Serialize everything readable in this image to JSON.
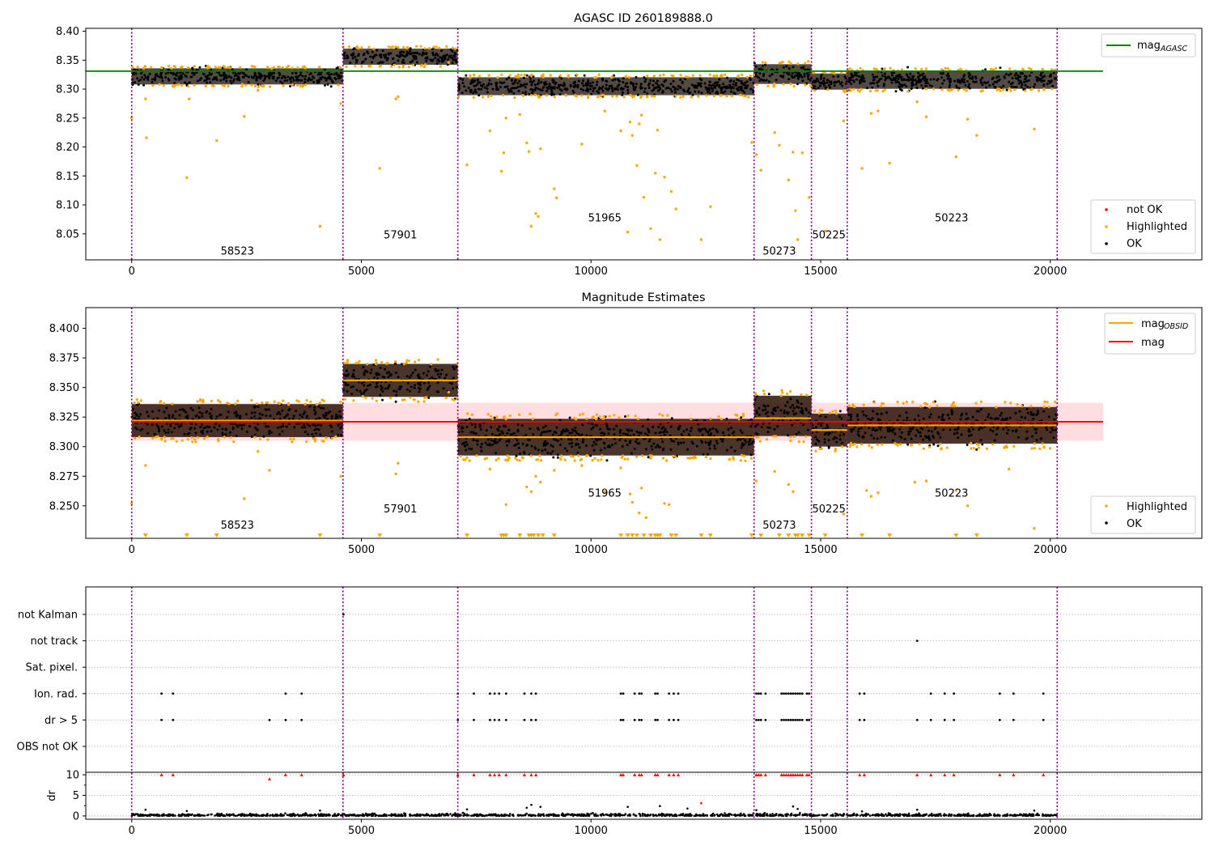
{
  "chart_data": [
    {
      "type": "scatter",
      "title": "AGASC ID 260189888.0",
      "xlabel": "",
      "ylabel": "",
      "xlim": [
        -1000,
        23300
      ],
      "ylim": [
        8.005,
        8.405
      ],
      "xticks": [
        0,
        5000,
        10000,
        15000,
        20000
      ],
      "xtick_labels": [
        "0",
        "5000",
        "10000",
        "15000",
        "20000"
      ],
      "yticks": [
        8.05,
        8.1,
        8.15,
        8.2,
        8.25,
        8.3,
        8.35,
        8.4
      ],
      "ytick_labels": [
        "8.05",
        "8.10",
        "8.15",
        "8.20",
        "8.25",
        "8.30",
        "8.35",
        "8.40"
      ],
      "boundaries": [
        0,
        4600,
        7100,
        13550,
        14800,
        15580,
        20150
      ],
      "reference_lines": [
        {
          "name": "mag$_{AGASC}$",
          "label_main": "mag",
          "label_sub": "AGASC",
          "y": 8.331,
          "x": [
            0,
            21150
          ],
          "color": "#008000"
        }
      ],
      "obsids": [
        {
          "label": "58523",
          "x": 2300,
          "y": 8.02
        },
        {
          "label": "57901",
          "x": 5850,
          "y": 8.048
        },
        {
          "label": "51965",
          "x": 10300,
          "y": 8.077
        },
        {
          "label": "50273",
          "x": 14100,
          "y": 8.02
        },
        {
          "label": "50225",
          "x": 15180,
          "y": 8.048
        },
        {
          "label": "50223",
          "x": 17850,
          "y": 8.077
        }
      ],
      "segments": [
        {
          "x": [
            0,
            4600
          ],
          "center": 8.322,
          "spread": 0.009
        },
        {
          "x": [
            4600,
            7100
          ],
          "center": 8.356,
          "spread": 0.009
        },
        {
          "x": [
            7100,
            13550
          ],
          "center": 8.305,
          "spread": 0.01
        },
        {
          "x": [
            13550,
            14800
          ],
          "center": 8.326,
          "spread": 0.011
        },
        {
          "x": [
            14800,
            15580
          ],
          "center": 8.313,
          "spread": 0.009
        },
        {
          "x": [
            15580,
            20150
          ],
          "center": 8.316,
          "spread": 0.01
        }
      ],
      "highlighted_points": [
        [
          0,
          8.25
        ],
        [
          300,
          8.283
        ],
        [
          320,
          8.216
        ],
        [
          1200,
          8.147
        ],
        [
          1250,
          8.283
        ],
        [
          1850,
          8.211
        ],
        [
          2450,
          8.253
        ],
        [
          2750,
          8.298
        ],
        [
          4100,
          8.063
        ],
        [
          4550,
          8.275
        ],
        [
          5400,
          8.163
        ],
        [
          5750,
          8.283
        ],
        [
          5800,
          8.287
        ],
        [
          6900,
          8.346
        ],
        [
          7300,
          8.169
        ],
        [
          7800,
          8.228
        ],
        [
          8050,
          8.158
        ],
        [
          8100,
          8.19
        ],
        [
          8150,
          8.25
        ],
        [
          8450,
          8.256
        ],
        [
          8600,
          8.207
        ],
        [
          8650,
          8.192
        ],
        [
          8700,
          8.063
        ],
        [
          8800,
          8.085
        ],
        [
          8850,
          8.08
        ],
        [
          8900,
          8.197
        ],
        [
          9200,
          8.128
        ],
        [
          9250,
          8.112
        ],
        [
          9800,
          8.205
        ],
        [
          10300,
          8.262
        ],
        [
          10650,
          8.228
        ],
        [
          10800,
          8.053
        ],
        [
          10850,
          8.243
        ],
        [
          10900,
          8.22
        ],
        [
          11000,
          8.168
        ],
        [
          11050,
          8.24
        ],
        [
          11100,
          8.255
        ],
        [
          11150,
          8.113
        ],
        [
          11300,
          8.059
        ],
        [
          11400,
          8.155
        ],
        [
          11450,
          8.229
        ],
        [
          11500,
          8.04
        ],
        [
          11600,
          8.148
        ],
        [
          11750,
          8.123
        ],
        [
          11850,
          8.093
        ],
        [
          12400,
          8.04
        ],
        [
          12600,
          8.097
        ],
        [
          13500,
          8.208
        ],
        [
          13600,
          8.187
        ],
        [
          13700,
          8.16
        ],
        [
          14000,
          8.225
        ],
        [
          14100,
          8.203
        ],
        [
          14300,
          8.143
        ],
        [
          14400,
          8.191
        ],
        [
          14450,
          8.09
        ],
        [
          14500,
          8.04
        ],
        [
          14600,
          8.19
        ],
        [
          14750,
          8.113
        ],
        [
          15100,
          8.055
        ],
        [
          15500,
          8.245
        ],
        [
          15900,
          8.163
        ],
        [
          16100,
          8.258
        ],
        [
          16250,
          8.262
        ],
        [
          16500,
          8.172
        ],
        [
          17100,
          8.278
        ],
        [
          17300,
          8.252
        ],
        [
          17950,
          8.183
        ],
        [
          18200,
          8.248
        ],
        [
          18400,
          8.22
        ],
        [
          19650,
          8.231
        ]
      ],
      "legend": [
        {
          "label": "not OK",
          "color": "#ff0000"
        },
        {
          "label": "Highlighted",
          "color": "#ffa500"
        },
        {
          "label": "OK",
          "color": "#000000"
        }
      ]
    },
    {
      "type": "scatter",
      "title": "Magnitude Estimates",
      "xlabel": "",
      "ylabel": "",
      "xlim": [
        -1000,
        23300
      ],
      "ylim": [
        8.2225,
        8.4175
      ],
      "xticks": [
        0,
        5000,
        10000,
        15000,
        20000
      ],
      "xtick_labels": [
        "0",
        "5000",
        "10000",
        "15000",
        "20000"
      ],
      "yticks": [
        8.25,
        8.275,
        8.3,
        8.325,
        8.35,
        8.375,
        8.4
      ],
      "ytick_labels": [
        "8.250",
        "8.275",
        "8.300",
        "8.325",
        "8.350",
        "8.375",
        "8.400"
      ],
      "boundaries": [
        0,
        4600,
        7100,
        13550,
        14800,
        15580,
        20150
      ],
      "mag": {
        "label": "mag",
        "value": 8.321,
        "band": [
          8.305,
          8.337
        ],
        "x": [
          0,
          21150
        ],
        "color": "#ff0000",
        "band_color": "#ffdde0"
      },
      "mag_obsid": {
        "label_main": "mag",
        "label_sub": "OBSID",
        "color": "#ffa500",
        "values": [
          8.322,
          8.356,
          8.308,
          8.324,
          8.314,
          8.318
        ]
      },
      "obsids": [
        {
          "label": "58523",
          "x": 2300,
          "y": 8.2335
        },
        {
          "label": "57901",
          "x": 5850,
          "y": 8.247
        },
        {
          "label": "51965",
          "x": 10300,
          "y": 8.2605
        },
        {
          "label": "50273",
          "x": 14100,
          "y": 8.2335
        },
        {
          "label": "50225",
          "x": 15180,
          "y": 8.247
        },
        {
          "label": "50223",
          "x": 17850,
          "y": 8.2605
        }
      ],
      "segments": [
        {
          "x": [
            0,
            4600
          ],
          "center": 8.322,
          "spread": 0.009
        },
        {
          "x": [
            4600,
            7100
          ],
          "center": 8.356,
          "spread": 0.009
        },
        {
          "x": [
            7100,
            13550
          ],
          "center": 8.308,
          "spread": 0.01
        },
        {
          "x": [
            13550,
            14800
          ],
          "center": 8.326,
          "spread": 0.011
        },
        {
          "x": [
            14800,
            15580
          ],
          "center": 8.314,
          "spread": 0.009
        },
        {
          "x": [
            15580,
            20150
          ],
          "center": 8.318,
          "spread": 0.01
        }
      ],
      "highlighted_points": [
        [
          0,
          8.252
        ],
        [
          300,
          8.284
        ],
        [
          2450,
          8.256
        ],
        [
          2750,
          8.296
        ],
        [
          3000,
          8.28
        ],
        [
          4550,
          8.275
        ],
        [
          5750,
          8.277
        ],
        [
          5800,
          8.286
        ],
        [
          6900,
          8.346
        ],
        [
          7800,
          8.281
        ],
        [
          8150,
          8.251
        ],
        [
          8600,
          8.266
        ],
        [
          8700,
          8.262
        ],
        [
          8800,
          8.275
        ],
        [
          8900,
          8.27
        ],
        [
          9200,
          8.28
        ],
        [
          9800,
          8.284
        ],
        [
          10300,
          8.262
        ],
        [
          10650,
          8.282
        ],
        [
          10850,
          8.26
        ],
        [
          10900,
          8.253
        ],
        [
          11050,
          8.244
        ],
        [
          11100,
          8.265
        ],
        [
          11200,
          8.24
        ],
        [
          11600,
          8.252
        ],
        [
          11700,
          8.251
        ],
        [
          13600,
          8.271
        ],
        [
          14000,
          8.279
        ],
        [
          14300,
          8.268
        ],
        [
          14400,
          8.262
        ],
        [
          15500,
          8.243
        ],
        [
          16000,
          8.263
        ],
        [
          16100,
          8.258
        ],
        [
          16250,
          8.261
        ],
        [
          17050,
          8.27
        ],
        [
          17300,
          8.271
        ],
        [
          17950,
          8.263
        ],
        [
          18200,
          8.25
        ],
        [
          19100,
          8.281
        ],
        [
          19650,
          8.231
        ]
      ],
      "clipped_below": [
        300,
        1200,
        1850,
        4100,
        5400,
        7300,
        8050,
        8100,
        8150,
        8450,
        8650,
        8700,
        8750,
        8850,
        8950,
        9200,
        10650,
        10800,
        10900,
        11000,
        11150,
        11300,
        11400,
        11450,
        11500,
        11750,
        11850,
        12400,
        12600,
        13500,
        13700,
        14100,
        14300,
        14450,
        14500,
        14600,
        14750,
        15100,
        15900,
        16500,
        17950,
        18400
      ],
      "legend": [
        {
          "label": "Highlighted",
          "color": "#ffa500"
        },
        {
          "label": "OK",
          "color": "#000000"
        }
      ]
    },
    {
      "type": "scatter",
      "title": "",
      "xlabel": "",
      "ylabel": "",
      "xlim": [
        -1000,
        23300
      ],
      "flag_rows": [
        "not Kalman",
        "not track",
        "Sat. pixel.",
        "Ion. rad.",
        "dr > 5",
        "OBS not OK"
      ],
      "boundaries": [
        0,
        4600,
        7100,
        13550,
        14800,
        15580,
        20150
      ],
      "flags": {
        "not Kalman": [
          4610
        ],
        "not track": [
          17100
        ],
        "Sat. pixel.": [],
        "Ion. rad.": [
          650,
          900,
          3350,
          3700,
          7100,
          7450,
          7800,
          7900,
          8000,
          8150,
          8550,
          8700,
          8800,
          10650,
          10700,
          10950,
          11050,
          11100,
          11400,
          11450,
          11700,
          11800,
          11900,
          13600,
          13650,
          13700,
          13800,
          14150,
          14200,
          14250,
          14300,
          14350,
          14400,
          14450,
          14500,
          14550,
          14600,
          14700,
          14750,
          15850,
          15950,
          17400,
          17700,
          17900,
          18900,
          19200,
          19850
        ],
        "dr > 5": [
          650,
          900,
          3000,
          3350,
          3700,
          7100,
          7450,
          7800,
          7900,
          8000,
          8150,
          8550,
          8700,
          8800,
          10650,
          10700,
          10950,
          11050,
          11100,
          11400,
          11450,
          11700,
          11800,
          11900,
          13600,
          13650,
          13700,
          13800,
          14150,
          14200,
          14250,
          14300,
          14350,
          14400,
          14450,
          14500,
          14550,
          14600,
          14700,
          14750,
          15850,
          15950,
          17100,
          17400,
          17700,
          17900,
          18900,
          19200,
          19850
        ],
        "OBS not OK": []
      },
      "dr": {
        "ylabel": "dr",
        "ylim": [
          -0.8,
          10.6
        ],
        "yticks": [
          0,
          5,
          10
        ],
        "ytick_labels": [
          "0",
          "5",
          "10"
        ],
        "red_markers": [
          650,
          900,
          3000,
          3350,
          3700,
          4610,
          7100,
          7450,
          7800,
          7900,
          8000,
          8150,
          8550,
          8700,
          8800,
          10650,
          10700,
          10950,
          11050,
          11100,
          11400,
          11450,
          11700,
          11800,
          11900,
          13600,
          13650,
          13700,
          13800,
          14150,
          14200,
          14250,
          14300,
          14350,
          14400,
          14450,
          14500,
          14550,
          14600,
          14700,
          14750,
          15850,
          15950,
          17100,
          17400,
          17700,
          17900,
          18900,
          19200,
          19850
        ],
        "red_marker_y": [
          10,
          10,
          9,
          10,
          10,
          10,
          10,
          10,
          10,
          10,
          10,
          10,
          10,
          10,
          10,
          10,
          10,
          10,
          10,
          10,
          10,
          10,
          10,
          10,
          10,
          10,
          10,
          10,
          10,
          10,
          10,
          10,
          10,
          10,
          10,
          10,
          10,
          10,
          10,
          10,
          10,
          10,
          10,
          10,
          10,
          10,
          10,
          10,
          10,
          10
        ],
        "spikes": [
          [
            300,
            1.5
          ],
          [
            1200,
            1.2
          ],
          [
            4100,
            1.3
          ],
          [
            7300,
            1.6
          ],
          [
            8600,
            2.0
          ],
          [
            8700,
            2.7
          ],
          [
            8900,
            2.2
          ],
          [
            10800,
            2.2
          ],
          [
            11500,
            2.4
          ],
          [
            12100,
            1.8
          ],
          [
            12400,
            3.1
          ],
          [
            13600,
            1.4
          ],
          [
            14400,
            2.3
          ],
          [
            14500,
            1.7
          ],
          [
            15900,
            1.1
          ],
          [
            17100,
            1.5
          ],
          [
            19650,
            1.3
          ]
        ]
      }
    }
  ]
}
